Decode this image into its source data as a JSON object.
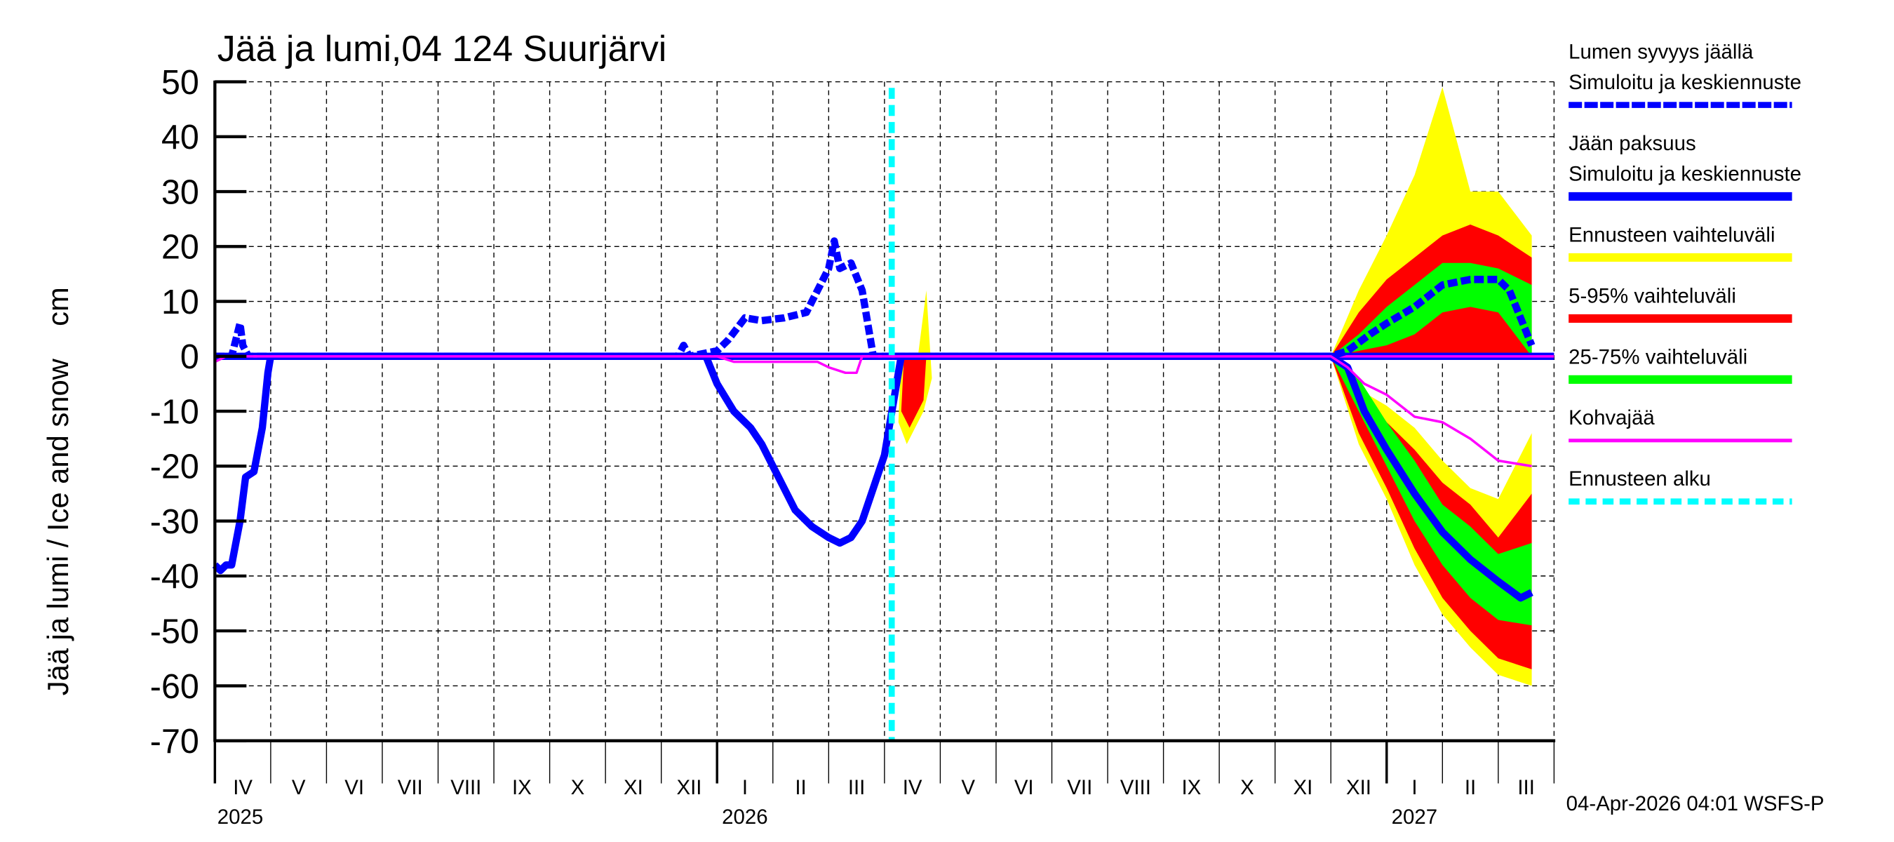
{
  "chart_data": {
    "type": "area",
    "title": "Jää ja lumi,04 124 Suurjärvi",
    "xlabel": "",
    "ylabel": "Jää ja lumi / Ice and snow    cm",
    "ylim": [
      -70,
      50
    ],
    "yticks": [
      50,
      40,
      30,
      20,
      10,
      0,
      -10,
      -20,
      -30,
      -40,
      -50,
      -60,
      -70
    ],
    "grid": true,
    "legend_position": "right",
    "x_range": [
      "2025-04-01",
      "2027-03-31"
    ],
    "month_labels": [
      "IV",
      "V",
      "VI",
      "VII",
      "VIII",
      "IX",
      "X",
      "XI",
      "XII",
      "I",
      "II",
      "III",
      "IV",
      "V",
      "VI",
      "VII",
      "VIII",
      "IX",
      "X",
      "XI",
      "XII",
      "I",
      "II",
      "III"
    ],
    "year_labels": [
      {
        "label": "2025",
        "month_index": 0
      },
      {
        "label": "2026",
        "month_index": 9
      },
      {
        "label": "2027",
        "month_index": 21
      }
    ],
    "forecast_start": "2026-04-04",
    "legend": [
      {
        "label_line1": "Lumen syvyys jäällä",
        "label_line2": "Simuloitu ja keskiennuste",
        "color": "#0000ff",
        "style": "dashed-thick"
      },
      {
        "label_line1": "Jään paksuus",
        "label_line2": "Simuloitu ja keskiennuste",
        "color": "#0000ff",
        "style": "solid-thick"
      },
      {
        "label_line1": "Ennusteen vaihteluväli",
        "label_line2": "",
        "color": "#ffff00",
        "style": "band"
      },
      {
        "label_line1": "5-95% vaihteluväli",
        "label_line2": "",
        "color": "#ff0000",
        "style": "band"
      },
      {
        "label_line1": "25-75% vaihteluväli",
        "label_line2": "",
        "color": "#00ff00",
        "style": "band"
      },
      {
        "label_line1": "Kohvajää",
        "label_line2": "",
        "color": "#ff00ff",
        "style": "solid-thin"
      },
      {
        "label_line1": "Ennusteen alku",
        "label_line2": "",
        "color": "#00ffff",
        "style": "dashed-thick"
      }
    ],
    "series": [
      {
        "name": "Lumen syvyys jäällä (snow depth on ice, cm)",
        "x_month_offset": [
          0.0,
          0.3,
          0.4,
          0.45,
          0.5,
          0.6,
          1.0,
          8.3,
          8.4,
          8.5,
          9.0,
          9.2,
          9.5,
          9.8,
          10.2,
          10.6,
          10.8,
          11.0,
          11.1,
          11.2,
          11.4,
          11.6,
          11.8,
          12.0,
          20.0,
          20.3,
          20.7,
          21.0,
          21.5,
          22.0,
          22.5,
          23.0,
          23.2,
          23.4,
          23.6
        ],
        "values": [
          0,
          0,
          4,
          6,
          2,
          0,
          0,
          0,
          2,
          0,
          1,
          3,
          7,
          6.5,
          7,
          8,
          12,
          16,
          21,
          16,
          17,
          12,
          0,
          0,
          0,
          1,
          4,
          6,
          9,
          13,
          14,
          14,
          12,
          7,
          2
        ]
      },
      {
        "name": "Jään paksuus (ice thickness, cm, plotted negative)",
        "x_month_offset": [
          0.0,
          0.1,
          0.2,
          0.3,
          0.45,
          0.55,
          0.7,
          0.85,
          0.95,
          1.0,
          8.8,
          9.0,
          9.3,
          9.6,
          9.8,
          10.1,
          10.4,
          10.7,
          11.0,
          11.2,
          11.4,
          11.6,
          11.8,
          12.0,
          12.3,
          20.0,
          20.3,
          20.6,
          21.0,
          21.5,
          22.0,
          22.5,
          23.0,
          23.4,
          23.6
        ],
        "values": [
          -38,
          -39,
          -38,
          -38,
          -30,
          -22,
          -21,
          -13,
          -3,
          0,
          0,
          -5,
          -10,
          -13,
          -16,
          -22,
          -28,
          -31,
          -33,
          -34,
          -33,
          -30,
          -24,
          -18,
          0,
          0,
          -2,
          -10,
          -17,
          -25,
          -32,
          -37,
          -41,
          -44,
          -43
        ]
      },
      {
        "name": "Kohvajää (slush ice, cm, plotted negative)",
        "x_month_offset": [
          0.0,
          0.2,
          1.0,
          9.0,
          9.3,
          10.8,
          11.0,
          11.3,
          11.5,
          11.6,
          20.0,
          20.3,
          20.6,
          21.0,
          21.5,
          22.0,
          22.5,
          23.0,
          23.6
        ],
        "values": [
          -1,
          0,
          0,
          0,
          -1,
          -1,
          -2,
          -3,
          -3,
          0,
          0,
          -2,
          -5,
          -7,
          -11,
          -12,
          -15,
          -19,
          -20
        ]
      }
    ],
    "forecast_bands_ice": {
      "x_month_offset": [
        20.0,
        20.5,
        21.0,
        21.5,
        22.0,
        22.5,
        23.0,
        23.6
      ],
      "min_max": [
        [
          0,
          0
        ],
        [
          -6,
          -16
        ],
        [
          -9,
          -26
        ],
        [
          -13,
          -38
        ],
        [
          -19,
          -47
        ],
        [
          -24,
          -53
        ],
        [
          -26,
          -58
        ],
        [
          -14,
          -60
        ]
      ],
      "p5_p95": [
        [
          0,
          0
        ],
        [
          -5,
          -14
        ],
        [
          -12,
          -24
        ],
        [
          -17,
          -35
        ],
        [
          -23,
          -44
        ],
        [
          -27,
          -50
        ],
        [
          -33,
          -55
        ],
        [
          -25,
          -57
        ]
      ],
      "p25_p75": [
        [
          0,
          0
        ],
        [
          -4,
          -10
        ],
        [
          -12,
          -20
        ],
        [
          -19,
          -30
        ],
        [
          -27,
          -38
        ],
        [
          -31,
          -44
        ],
        [
          -36,
          -48
        ],
        [
          -34,
          -49
        ]
      ]
    },
    "forecast_bands_snow": {
      "x_month_offset": [
        20.0,
        20.5,
        21.0,
        21.5,
        22.0,
        22.5,
        23.0,
        23.6
      ],
      "min_max": [
        [
          0,
          0
        ],
        [
          0,
          12
        ],
        [
          0,
          22
        ],
        [
          0,
          33
        ],
        [
          0,
          49
        ],
        [
          0,
          30
        ],
        [
          0,
          30
        ],
        [
          0,
          22
        ]
      ],
      "p5_p95": [
        [
          0,
          0
        ],
        [
          0,
          8
        ],
        [
          0,
          14
        ],
        [
          0,
          18
        ],
        [
          0,
          22
        ],
        [
          0,
          24
        ],
        [
          0,
          22
        ],
        [
          0,
          18
        ]
      ],
      "p25_p75": [
        [
          0,
          0
        ],
        [
          1,
          4
        ],
        [
          2,
          9
        ],
        [
          4,
          13
        ],
        [
          8,
          17
        ],
        [
          9,
          17
        ],
        [
          8,
          16
        ],
        [
          0,
          13
        ]
      ]
    }
  },
  "footer": {
    "timestamp": "04-Apr-2026 04:01 WSFS-P"
  }
}
